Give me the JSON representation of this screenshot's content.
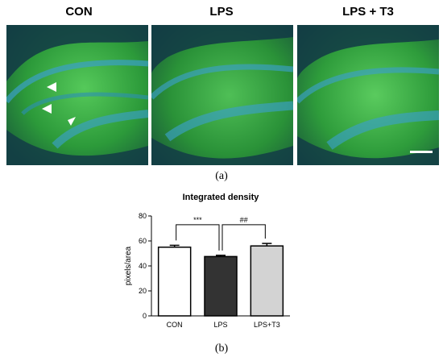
{
  "figure": {
    "panel_titles": [
      "CON",
      "LPS",
      "LPS + T3"
    ],
    "caption_a": "(a)",
    "caption_b": "(b)"
  },
  "colors": {
    "tissue_green": "#2fa83a",
    "nuclei_blue": "#3aa0c8",
    "background_dark": "#0b2a36",
    "arrowhead": "#ffffff",
    "scale_bar": "#ffffff"
  },
  "chart_data": {
    "type": "bar",
    "title": "Integrated density",
    "ylabel": "pixels/area",
    "xlabel": "",
    "categories": [
      "CON",
      "LPS",
      "LPS+T3"
    ],
    "values": [
      55,
      47.5,
      56
    ],
    "errors": [
      1.5,
      1,
      2
    ],
    "bar_colors": [
      "#ffffff",
      "#333333",
      "#d3d3d3"
    ],
    "ylim": [
      0,
      80
    ],
    "yticks": [
      0,
      20,
      40,
      60,
      80
    ],
    "annotations": [
      {
        "from": 0,
        "to": 1,
        "label": "***"
      },
      {
        "from": 1,
        "to": 2,
        "label": "##"
      }
    ]
  }
}
